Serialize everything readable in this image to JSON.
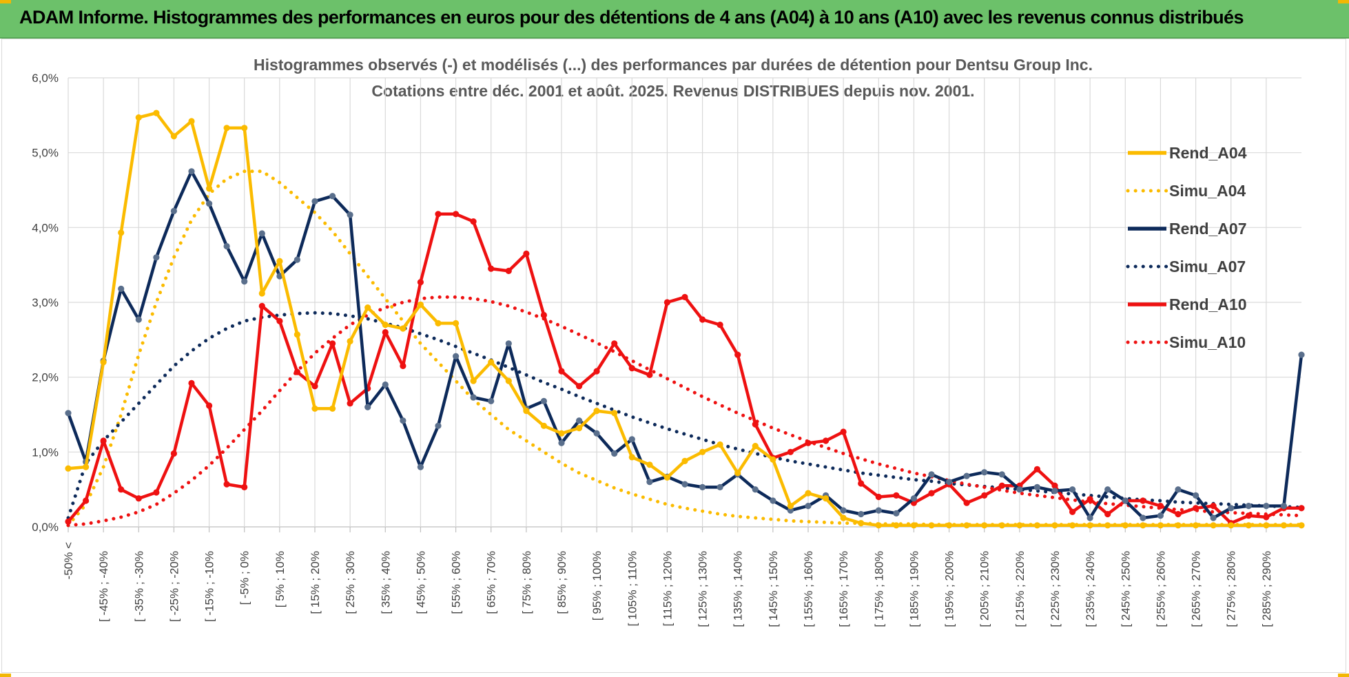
{
  "header": {
    "title": "ADAM Informe. Histogrammes des performances en euros pour des détentions de 4 ans (A04) à 10 ans (A10) avec les revenus connus distribués",
    "background_color": "#6cc16a"
  },
  "chart_data": {
    "type": "line",
    "title_line1": "Histogrammes observés (-) et modélisés (...) des performances par durées de détention pour Dentsu Group Inc.",
    "title_line2": "Cotations entre déc. 2001 et août. 2025. Revenus DISTRIBUES depuis nov. 2001.",
    "xlabel": "",
    "ylabel": "",
    "ylim": [
      0,
      6
    ],
    "y_unit": "%",
    "y_ticks": [
      "0,0%",
      "1,0%",
      "2,0%",
      "3,0%",
      "4,0%",
      "5,0%",
      "6,0%"
    ],
    "grid": true,
    "legend_position": "right",
    "x_tick_labels": [
      "-50% <",
      "[ -45% ; -40%",
      "[ -35% ; -30%",
      "[ -25% ; -20%",
      "[ -15% ; -10%",
      "[ -5% ; 0%",
      "[ 5% ; 10%",
      "[ 15% ; 20%",
      "[ 25% ; 30%",
      "[ 35% ; 40%",
      "[ 45% ; 50%",
      "[ 55% ; 60%",
      "[ 65% ; 70%",
      "[ 75% ; 80%",
      "[ 85% ; 90%",
      "[ 95% ; 100%",
      "[ 105% ; 110%",
      "[ 115% ; 120%",
      "[ 125% ; 130%",
      "[ 135% ; 140%",
      "[ 145% ; 150%",
      "[ 155% ; 160%",
      "[ 165% ; 170%",
      "[ 175% ; 180%",
      "[ 185% ; 190%",
      "[ 195% ; 200%",
      "[ 205% ; 210%",
      "[ 215% ; 220%",
      "[ 225% ; 230%",
      "[ 235% ; 240%",
      "[ 245% ; 250%",
      "[ 255% ; 260%",
      "[ 265% ; 270%",
      "[ 275% ; 280%",
      "[ 285% ; 290%"
    ],
    "series": [
      {
        "name": "Rend_A04",
        "style": "solid",
        "color": "#fbbb00",
        "values": [
          0.78,
          0.8,
          2.2,
          3.93,
          5.47,
          5.53,
          5.22,
          5.42,
          4.52,
          5.33,
          5.33,
          3.12,
          3.55,
          2.57,
          1.58,
          1.58,
          2.48,
          2.93,
          2.7,
          2.65,
          2.97,
          2.72,
          2.72,
          1.95,
          2.2,
          1.95,
          1.55,
          1.35,
          1.25,
          1.32,
          1.55,
          1.52,
          0.93,
          0.83,
          0.66,
          0.88,
          1.0,
          1.1,
          0.72,
          1.08,
          0.9,
          0.28,
          0.45,
          0.38,
          0.12,
          0.05,
          0.02,
          0.02,
          0.02,
          0.02,
          0.02,
          0.02,
          0.02,
          0.02,
          0.02,
          0.02,
          0.02,
          0.02,
          0.02,
          0.02,
          0.02,
          0.02,
          0.02,
          0.02,
          0.02,
          0.02,
          0.02,
          0.02,
          0.02,
          0.02,
          0.02
        ]
      },
      {
        "name": "Simu_A04",
        "style": "dotted",
        "color": "#fbbb00",
        "values": [
          0.02,
          0.3,
          0.8,
          1.5,
          2.3,
          3.0,
          3.6,
          4.1,
          4.45,
          4.65,
          4.75,
          4.75,
          4.6,
          4.4,
          4.2,
          3.95,
          3.65,
          3.35,
          3.05,
          2.75,
          2.45,
          2.2,
          1.95,
          1.7,
          1.5,
          1.3,
          1.15,
          1.0,
          0.85,
          0.72,
          0.62,
          0.52,
          0.44,
          0.37,
          0.3,
          0.25,
          0.21,
          0.17,
          0.14,
          0.12,
          0.1,
          0.08,
          0.07,
          0.06,
          0.05,
          0.05,
          0.04,
          0.04,
          0.04,
          0.03,
          0.03,
          0.03,
          0.03,
          0.03,
          0.03,
          0.03,
          0.03,
          0.03,
          0.03,
          0.03,
          0.03,
          0.03,
          0.03,
          0.03,
          0.03,
          0.03,
          0.03,
          0.03,
          0.03,
          0.03,
          0.03
        ]
      },
      {
        "name": "Rend_A07",
        "style": "solid",
        "color": "#0d2a5a",
        "values": [
          1.52,
          0.87,
          2.22,
          3.18,
          2.77,
          3.6,
          4.22,
          4.75,
          4.32,
          3.75,
          3.28,
          3.92,
          3.35,
          3.57,
          4.35,
          4.42,
          4.17,
          1.6,
          1.9,
          1.42,
          0.8,
          1.35,
          2.28,
          1.73,
          1.68,
          2.45,
          1.58,
          1.68,
          1.12,
          1.42,
          1.25,
          0.98,
          1.17,
          0.6,
          0.67,
          0.57,
          0.53,
          0.53,
          0.7,
          0.5,
          0.35,
          0.22,
          0.28,
          0.42,
          0.22,
          0.17,
          0.22,
          0.18,
          0.38,
          0.7,
          0.6,
          0.68,
          0.73,
          0.7,
          0.5,
          0.53,
          0.48,
          0.5,
          0.12,
          0.5,
          0.35,
          0.12,
          0.15,
          0.5,
          0.42,
          0.12,
          0.25,
          0.28,
          0.28,
          0.28,
          2.3
        ]
      },
      {
        "name": "Simu_A07",
        "style": "dotted",
        "color": "#0d2a5a",
        "values": [
          0.12,
          0.85,
          1.15,
          1.4,
          1.65,
          1.9,
          2.15,
          2.35,
          2.52,
          2.65,
          2.75,
          2.8,
          2.83,
          2.85,
          2.86,
          2.85,
          2.82,
          2.78,
          2.72,
          2.66,
          2.58,
          2.5,
          2.41,
          2.32,
          2.23,
          2.13,
          2.03,
          1.93,
          1.84,
          1.74,
          1.65,
          1.56,
          1.47,
          1.39,
          1.31,
          1.24,
          1.17,
          1.1,
          1.04,
          0.98,
          0.93,
          0.88,
          0.84,
          0.8,
          0.76,
          0.72,
          0.69,
          0.66,
          0.63,
          0.61,
          0.58,
          0.56,
          0.54,
          0.52,
          0.5,
          0.48,
          0.46,
          0.44,
          0.42,
          0.4,
          0.38,
          0.36,
          0.35,
          0.33,
          0.32,
          0.31,
          0.3,
          0.29,
          0.28,
          0.27,
          0.26
        ]
      },
      {
        "name": "Rend_A10",
        "style": "solid",
        "color": "#ee1111",
        "values": [
          0.07,
          0.35,
          1.15,
          0.5,
          0.38,
          0.46,
          0.98,
          1.92,
          1.62,
          0.57,
          0.53,
          2.95,
          2.75,
          2.07,
          1.88,
          2.45,
          1.65,
          1.85,
          2.6,
          2.15,
          3.27,
          4.18,
          4.18,
          4.08,
          3.45,
          3.42,
          3.65,
          2.83,
          2.08,
          1.88,
          2.08,
          2.45,
          2.12,
          2.03,
          3.0,
          3.07,
          2.77,
          2.7,
          2.3,
          1.37,
          0.92,
          1.0,
          1.12,
          1.15,
          1.27,
          0.58,
          0.4,
          0.42,
          0.32,
          0.45,
          0.57,
          0.32,
          0.42,
          0.55,
          0.55,
          0.77,
          0.55,
          0.2,
          0.37,
          0.17,
          0.35,
          0.35,
          0.28,
          0.17,
          0.25,
          0.28,
          0.05,
          0.15,
          0.13,
          0.25,
          0.25
        ]
      },
      {
        "name": "Simu_A10",
        "style": "dotted",
        "color": "#ee1111",
        "values": [
          0.02,
          0.04,
          0.08,
          0.13,
          0.2,
          0.3,
          0.45,
          0.62,
          0.82,
          1.05,
          1.3,
          1.55,
          1.82,
          2.08,
          2.32,
          2.52,
          2.7,
          2.83,
          2.93,
          3.0,
          3.05,
          3.07,
          3.07,
          3.05,
          3.01,
          2.95,
          2.87,
          2.78,
          2.68,
          2.57,
          2.46,
          2.34,
          2.22,
          2.1,
          1.98,
          1.86,
          1.74,
          1.63,
          1.52,
          1.42,
          1.32,
          1.23,
          1.14,
          1.06,
          0.98,
          0.91,
          0.84,
          0.78,
          0.72,
          0.67,
          0.62,
          0.57,
          0.53,
          0.49,
          0.45,
          0.42,
          0.39,
          0.36,
          0.33,
          0.31,
          0.29,
          0.27,
          0.25,
          0.23,
          0.22,
          0.2,
          0.19,
          0.18,
          0.17,
          0.16,
          0.15
        ]
      }
    ]
  }
}
